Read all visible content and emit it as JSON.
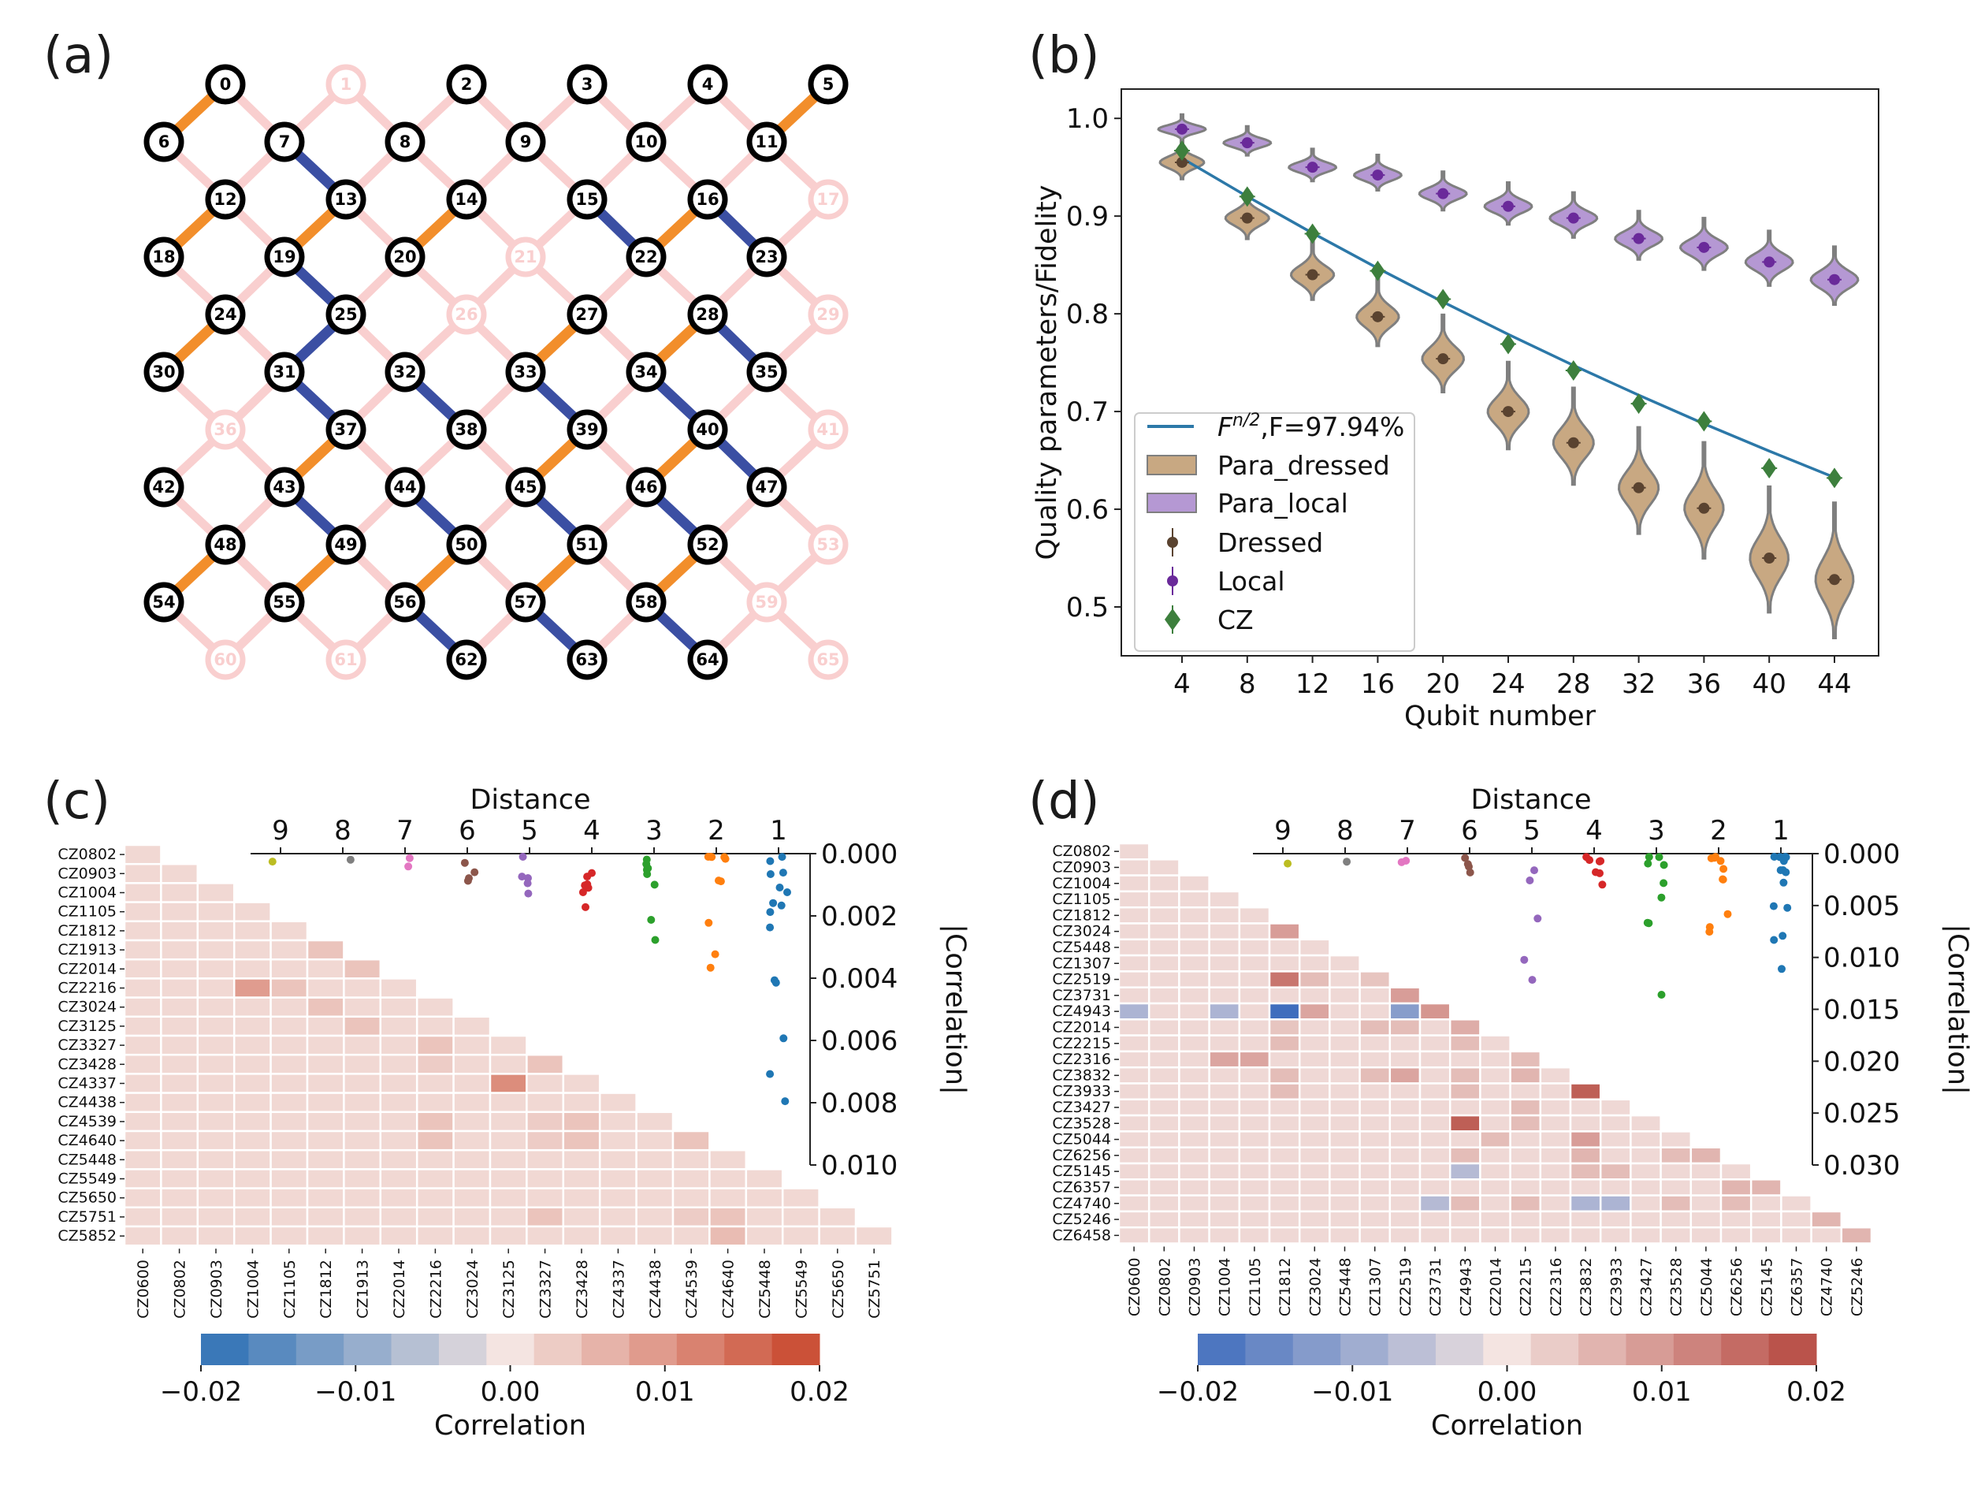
{
  "panel_labels": [
    "(a)",
    "(b)",
    "(c)",
    "(d)"
  ],
  "colors": {
    "orange": "#f28e2b",
    "blue": "#3b4fa3",
    "pink": "#f9cfcf",
    "para_dressed": "#c8a882",
    "para_local": "#b598d3",
    "dressed_marker": "#5a4330",
    "local_marker": "#6a2a9a",
    "cz_marker": "#3d7f3d",
    "fit_line": "#2c78a8"
  },
  "chart_data": [
    {
      "panel": "(a)",
      "type": "diagram",
      "title": "",
      "grid": {
        "cols": 6,
        "rows": 11,
        "node_count": 66
      },
      "inactive_nodes": [
        1,
        17,
        21,
        26,
        29,
        36,
        41,
        53,
        59,
        60,
        61,
        65
      ],
      "orange_couplers": [
        [
          0,
          6
        ],
        [
          5,
          11
        ],
        [
          12,
          18
        ],
        [
          13,
          19
        ],
        [
          24,
          30
        ],
        [
          14,
          20
        ],
        [
          16,
          22
        ],
        [
          27,
          33
        ],
        [
          28,
          34
        ],
        [
          37,
          43
        ],
        [
          39,
          45
        ],
        [
          40,
          46
        ],
        [
          48,
          54
        ],
        [
          49,
          55
        ],
        [
          50,
          56
        ],
        [
          51,
          57
        ],
        [
          52,
          58
        ]
      ],
      "blue_couplers": [
        [
          7,
          13
        ],
        [
          15,
          22
        ],
        [
          19,
          25
        ],
        [
          16,
          23
        ],
        [
          25,
          31
        ],
        [
          28,
          35
        ],
        [
          31,
          37
        ],
        [
          32,
          38
        ],
        [
          33,
          39
        ],
        [
          34,
          40
        ],
        [
          40,
          47
        ],
        [
          43,
          49
        ],
        [
          44,
          50
        ],
        [
          45,
          51
        ],
        [
          46,
          52
        ],
        [
          56,
          62
        ],
        [
          57,
          63
        ],
        [
          58,
          64
        ]
      ]
    },
    {
      "panel": "(b)",
      "type": "violin",
      "xlabel": "Qubit number",
      "ylabel": "Quality parameters/Fidelity",
      "x": [
        4,
        8,
        12,
        16,
        20,
        24,
        28,
        32,
        36,
        40,
        44
      ],
      "ylim": [
        0.45,
        1.03
      ],
      "yticks": [
        "0.5",
        "0.6",
        "0.7",
        "0.8",
        "0.9",
        "1.0"
      ],
      "series": [
        {
          "name": "Dressed",
          "values": [
            0.955,
            0.898,
            0.84,
            0.797,
            0.754,
            0.7,
            0.668,
            0.622,
            0.601,
            0.55,
            0.528
          ]
        },
        {
          "name": "Local",
          "values": [
            0.989,
            0.975,
            0.95,
            0.942,
            0.923,
            0.91,
            0.898,
            0.877,
            0.868,
            0.853,
            0.835
          ]
        },
        {
          "name": "CZ",
          "values": [
            0.967,
            0.92,
            0.882,
            0.844,
            0.815,
            0.769,
            0.742,
            0.708,
            0.69,
            0.642,
            0.632
          ]
        }
      ],
      "fit": {
        "label": "F^{n/2},F=97.94%",
        "F": 0.9794
      },
      "legend": [
        {
          "label": "F",
          "sup": "n/2",
          "rest": ",F=97.94%"
        },
        {
          "label": "Para_dressed"
        },
        {
          "label": "Para_local"
        },
        {
          "label": "Dressed"
        },
        {
          "label": "Local"
        },
        {
          "label": "CZ"
        }
      ]
    },
    {
      "panel": "(c)",
      "type": "heatmap",
      "row_labels": [
        "CZ0802",
        "CZ0903",
        "CZ1004",
        "CZ1105",
        "CZ1812",
        "CZ1913",
        "CZ2014",
        "CZ2216",
        "CZ3024",
        "CZ3125",
        "CZ3327",
        "CZ3428",
        "CZ4337",
        "CZ4438",
        "CZ4539",
        "CZ4640",
        "CZ5448",
        "CZ5549",
        "CZ5650",
        "CZ5751",
        "CZ5852"
      ],
      "col_labels": [
        "CZ0600",
        "CZ0802",
        "CZ0903",
        "CZ1004",
        "CZ1105",
        "CZ1812",
        "CZ1913",
        "CZ2014",
        "CZ2216",
        "CZ3024",
        "CZ3125",
        "CZ3327",
        "CZ3428",
        "CZ4337",
        "CZ4438",
        "CZ4539",
        "CZ4640",
        "CZ5448",
        "CZ5549",
        "CZ5650",
        "CZ5751"
      ],
      "highlights": [
        [
          5,
          5,
          0.004
        ],
        [
          6,
          6,
          0.004
        ],
        [
          7,
          3,
          0.009
        ],
        [
          7,
          4,
          0.004
        ],
        [
          8,
          5,
          0.004
        ],
        [
          9,
          6,
          0.004
        ],
        [
          10,
          8,
          0.004
        ],
        [
          11,
          8,
          0.003
        ],
        [
          11,
          11,
          0.004
        ],
        [
          12,
          10,
          0.011
        ],
        [
          14,
          8,
          0.004
        ],
        [
          14,
          11,
          0.003
        ],
        [
          14,
          12,
          0.004
        ],
        [
          15,
          8,
          0.004
        ],
        [
          15,
          11,
          0.003
        ],
        [
          15,
          12,
          0.004
        ],
        [
          15,
          15,
          0.004
        ],
        [
          19,
          11,
          0.004
        ],
        [
          19,
          15,
          0.003
        ],
        [
          19,
          16,
          0.004
        ],
        [
          20,
          16,
          0.005
        ]
      ],
      "base_value": 0.0015,
      "colorbar": {
        "label": "Correlation",
        "ticks": [
          "−0.02",
          "−0.01",
          "0.00",
          "0.01",
          "0.02"
        ],
        "range": [
          -0.02,
          0.02
        ]
      },
      "inset": {
        "title": "Distance",
        "distances": [
          "9",
          "8",
          "7",
          "6",
          "5",
          "4",
          "3",
          "2",
          "1"
        ],
        "ylabel": "|Correlation|",
        "yticks": [
          "0.000",
          "0.002",
          "0.004",
          "0.006",
          "0.008",
          "0.010"
        ],
        "ylim": [
          0,
          0.01
        ]
      }
    },
    {
      "panel": "(d)",
      "type": "heatmap",
      "row_labels": [
        "CZ0802",
        "CZ0903",
        "CZ1004",
        "CZ1105",
        "CZ1812",
        "CZ3024",
        "CZ5448",
        "CZ1307",
        "CZ2519",
        "CZ3731",
        "CZ4943",
        "CZ2014",
        "CZ2215",
        "CZ2316",
        "CZ3832",
        "CZ3933",
        "CZ3427",
        "CZ3528",
        "CZ5044",
        "CZ6256",
        "CZ5145",
        "CZ6357",
        "CZ4740",
        "CZ5246",
        "CZ6458"
      ],
      "col_labels": [
        "CZ0600",
        "CZ0802",
        "CZ0903",
        "CZ1004",
        "CZ1105",
        "CZ1812",
        "CZ3024",
        "CZ5448",
        "CZ1307",
        "CZ2519",
        "CZ3731",
        "CZ4943",
        "CZ2014",
        "CZ2215",
        "CZ2316",
        "CZ3832",
        "CZ3933",
        "CZ3427",
        "CZ3528",
        "CZ5044",
        "CZ6256",
        "CZ5145",
        "CZ6357",
        "CZ4740",
        "CZ5246"
      ],
      "highlights": [
        [
          5,
          5,
          0.009
        ],
        [
          7,
          9,
          0.006
        ],
        [
          8,
          5,
          0.014
        ],
        [
          8,
          6,
          0.005
        ],
        [
          8,
          8,
          0.004
        ],
        [
          9,
          9,
          0.009
        ],
        [
          10,
          0,
          -0.008
        ],
        [
          10,
          3,
          -0.008
        ],
        [
          10,
          5,
          -0.02
        ],
        [
          10,
          6,
          0.008
        ],
        [
          10,
          9,
          -0.012
        ],
        [
          10,
          10,
          0.01
        ],
        [
          11,
          5,
          0.004
        ],
        [
          11,
          8,
          0.005
        ],
        [
          11,
          9,
          0.005
        ],
        [
          11,
          11,
          0.007
        ],
        [
          12,
          5,
          0.005
        ],
        [
          12,
          11,
          0.005
        ],
        [
          13,
          3,
          0.008
        ],
        [
          13,
          4,
          0.008
        ],
        [
          13,
          13,
          0.005
        ],
        [
          14,
          5,
          0.005
        ],
        [
          14,
          8,
          0.005
        ],
        [
          14,
          9,
          0.008
        ],
        [
          14,
          11,
          0.005
        ],
        [
          14,
          13,
          0.006
        ],
        [
          15,
          5,
          0.005
        ],
        [
          15,
          11,
          0.005
        ],
        [
          15,
          15,
          0.017
        ],
        [
          16,
          13,
          0.005
        ],
        [
          17,
          11,
          0.017
        ],
        [
          17,
          13,
          0.005
        ],
        [
          18,
          12,
          0.005
        ],
        [
          18,
          15,
          0.009
        ],
        [
          19,
          11,
          0.005
        ],
        [
          19,
          15,
          0.006
        ],
        [
          19,
          18,
          0.005
        ],
        [
          19,
          19,
          0.006
        ],
        [
          20,
          11,
          -0.007
        ],
        [
          20,
          15,
          0.005
        ],
        [
          20,
          16,
          0.005
        ],
        [
          21,
          20,
          0.006
        ],
        [
          21,
          21,
          0.006
        ],
        [
          22,
          10,
          -0.007
        ],
        [
          22,
          11,
          0.005
        ],
        [
          22,
          13,
          0.005
        ],
        [
          22,
          15,
          -0.008
        ],
        [
          22,
          16,
          -0.008
        ],
        [
          22,
          18,
          0.005
        ],
        [
          22,
          20,
          0.005
        ],
        [
          23,
          23,
          0.006
        ],
        [
          24,
          24,
          0.006
        ]
      ],
      "base_value": 0.0015,
      "colorbar": {
        "label": "Correlation",
        "ticks": [
          "−0.02",
          "−0.01",
          "0.00",
          "0.01",
          "0.02"
        ],
        "range": [
          -0.02,
          0.02
        ]
      },
      "inset": {
        "title": "Distance",
        "distances": [
          "9",
          "8",
          "7",
          "6",
          "5",
          "4",
          "3",
          "2",
          "1"
        ],
        "ylabel": "|Correlation|",
        "yticks": [
          "0.000",
          "0.005",
          "0.010",
          "0.015",
          "0.020",
          "0.025",
          "0.030"
        ],
        "ylim": [
          0,
          0.03
        ]
      }
    }
  ]
}
